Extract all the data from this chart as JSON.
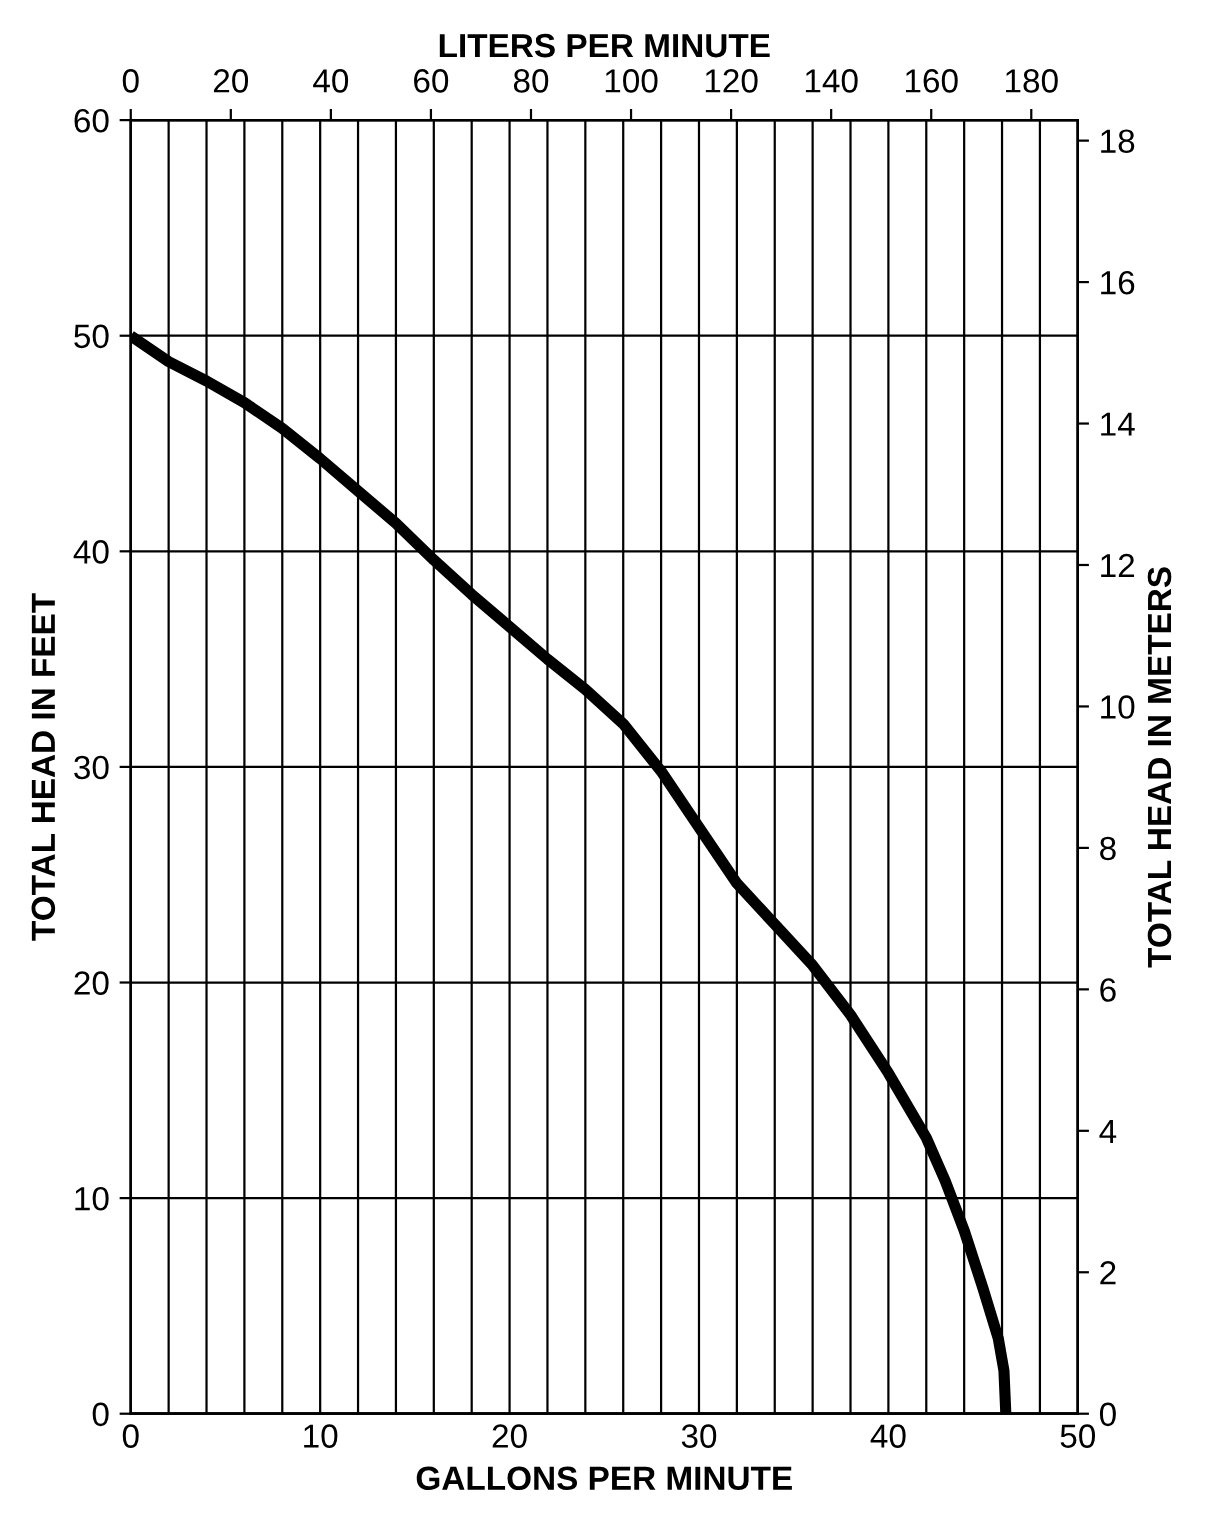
{
  "chart_data": {
    "type": "line",
    "xlabel": "GALLONS PER MINUTE",
    "ylabel": "TOTAL HEAD IN FEET",
    "x2label": "LITERS PER MINUTE",
    "y2label": "TOTAL HEAD IN METERS",
    "x": [
      0,
      2,
      4,
      6,
      8,
      10,
      12,
      14,
      16,
      18,
      20,
      22,
      24,
      26,
      28,
      30,
      32,
      34,
      36,
      38,
      40,
      42,
      43,
      44,
      45,
      45.8,
      46.1,
      46.2
    ],
    "series": [
      {
        "color": "#000000",
        "values": [
          50,
          48.8,
          47.9,
          46.9,
          45.7,
          44.3,
          42.8,
          41.3,
          39.6,
          38.0,
          36.5,
          35.0,
          33.6,
          32.0,
          29.8,
          27.2,
          24.6,
          22.7,
          20.8,
          18.5,
          15.8,
          12.8,
          10.8,
          8.5,
          5.8,
          3.5,
          2,
          0
        ]
      }
    ],
    "xlim": [
      0,
      50
    ],
    "ylim": [
      0,
      60
    ],
    "xticks": [
      0,
      {
        "value": 2,
        "label": null
      },
      {
        "value": 4,
        "label": null
      },
      {
        "value": 6,
        "label": null
      },
      {
        "value": 8,
        "label": null
      },
      10,
      {
        "value": 12,
        "label": null
      },
      {
        "value": 14,
        "label": null
      },
      {
        "value": 16,
        "label": null
      },
      {
        "value": 18,
        "label": null
      },
      20,
      {
        "value": 22,
        "label": null
      },
      {
        "value": 24,
        "label": null
      },
      {
        "value": 26,
        "label": null
      },
      {
        "value": 28,
        "label": null
      },
      30,
      {
        "value": 32,
        "label": null
      },
      {
        "value": 34,
        "label": null
      },
      {
        "value": 36,
        "label": null
      },
      {
        "value": 38,
        "label": null
      },
      40,
      {
        "value": 42,
        "label": null
      },
      {
        "value": 44,
        "label": null
      },
      {
        "value": 46,
        "label": null
      },
      {
        "value": 48,
        "label": null
      },
      50
    ],
    "yticks": [
      0,
      10,
      20,
      30,
      40,
      50,
      60
    ],
    "x2lim": [
      0,
      189.3
    ],
    "x2ticks": [
      0,
      20,
      40,
      60,
      80,
      100,
      120,
      140,
      160,
      180
    ],
    "y2lim": [
      0,
      18.29
    ],
    "y2ticks": [
      0,
      2,
      4,
      6,
      8,
      10,
      12,
      14,
      16,
      18
    ],
    "grid": true,
    "marker": "none",
    "line_style": "solid"
  }
}
